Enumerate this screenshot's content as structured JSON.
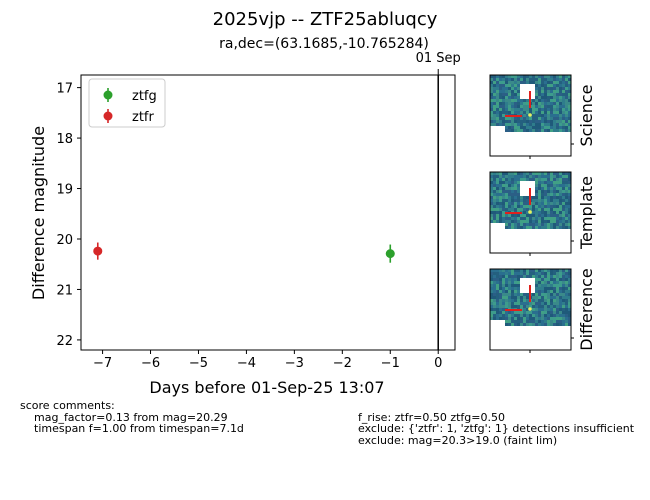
{
  "chart_data": {
    "type": "scatter",
    "title": "2025vjp -- ZTF25abluqcy",
    "subtitle": "ra,dec=(63.1685,-10.765284)",
    "xlabel": "Days before 01-Sep-25 13:07",
    "ylabel": "Difference magnitude",
    "xlim": [
      -7.45,
      0.35
    ],
    "ylim": [
      22.2,
      16.75
    ],
    "y_inverted": true,
    "x_ticks": [
      -7,
      -6,
      -5,
      -4,
      -3,
      -2,
      -1,
      0
    ],
    "x_tick_labels": [
      "−7",
      "−6",
      "−5",
      "−4",
      "−3",
      "−2",
      "−1",
      "0"
    ],
    "y_ticks": [
      17,
      18,
      19,
      20,
      21,
      22
    ],
    "y_tick_labels": [
      "17",
      "18",
      "19",
      "20",
      "21",
      "22"
    ],
    "vline": {
      "x": 0,
      "label": "01 Sep"
    },
    "legend_position": "top-left",
    "series": [
      {
        "name": "ztfg",
        "color": "#2ca02c",
        "points": [
          {
            "x": -1.0,
            "y": 20.29,
            "err": 0.18
          }
        ]
      },
      {
        "name": "ztfr",
        "color": "#d62728",
        "points": [
          {
            "x": -7.1,
            "y": 20.24,
            "err": 0.17
          }
        ]
      }
    ],
    "grid": false
  },
  "cutouts": [
    {
      "label": "Science"
    },
    {
      "label": "Template"
    },
    {
      "label": "Difference"
    }
  ],
  "comments": {
    "header": "score comments:",
    "left": [
      "mag_factor=0.13 from mag=20.29",
      "timespan f=1.00 from timespan=7.1d"
    ],
    "right": [
      "f_rise: ztfr=0.50 ztfg=0.50",
      "exclude: {'ztfr': 1, 'ztfg': 1} detections insufficient",
      "exclude: mag=20.3>19.0 (faint lim)"
    ]
  }
}
